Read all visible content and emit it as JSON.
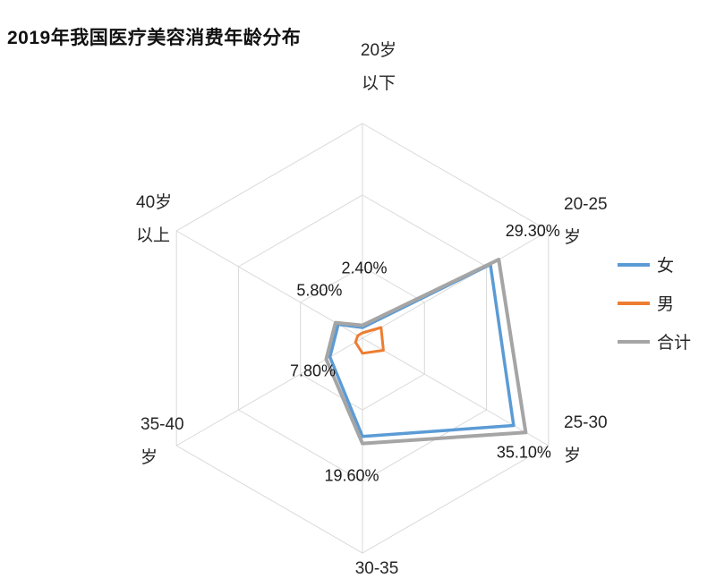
{
  "chart_data": {
    "type": "radar",
    "title": "2019年我国医疗美容消费年龄分布",
    "categories": [
      "20岁\n以下",
      "20-25\n岁",
      "25-30\n岁",
      "30-35",
      "35-40\n岁",
      "40岁\n以上"
    ],
    "series": [
      {
        "id": "female",
        "name": "女",
        "color": "#5B9BD5",
        "values": [
          2.0,
          27.5,
          32.5,
          18.3,
          7.0,
          5.2
        ]
      },
      {
        "id": "male",
        "name": "男",
        "color": "#ED7D31",
        "values": [
          1.0,
          4.0,
          4.5,
          2.8,
          1.5,
          1.0
        ]
      },
      {
        "id": "total",
        "name": "合计",
        "color": "#A5A5A5",
        "values": [
          2.4,
          29.3,
          35.1,
          19.6,
          7.8,
          5.8
        ]
      }
    ],
    "data_labels": {
      "series": "合计",
      "values": [
        "2.40%",
        "29.30%",
        "35.10%",
        "19.60%",
        "7.80%",
        "5.80%"
      ]
    },
    "axis": {
      "max": 40,
      "rings": 3,
      "grid_color": "#D9D9D9"
    },
    "legend": {
      "position": "right",
      "entries": [
        "女",
        "男",
        "合计"
      ]
    },
    "text_color": "#262626",
    "label_color": "#1a1a1a"
  }
}
